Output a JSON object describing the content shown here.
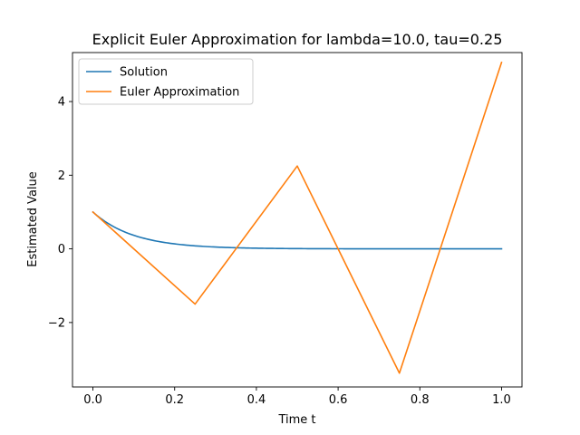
{
  "chart_data": {
    "type": "line",
    "title": "Explicit Euler Approximation for lambda=10.0, tau=0.25",
    "xlabel": "Time t",
    "ylabel": "Estimated Value",
    "xlim": [
      -0.05,
      1.05
    ],
    "ylim": [
      -3.75,
      5.33
    ],
    "xticks": [
      0.0,
      0.2,
      0.4,
      0.6,
      0.8,
      1.0
    ],
    "xtick_labels": [
      "0.0",
      "0.2",
      "0.4",
      "0.6",
      "0.8",
      "1.0"
    ],
    "yticks": [
      -2,
      0,
      2,
      4
    ],
    "ytick_labels": [
      "−2",
      "0",
      "2",
      "4"
    ],
    "grid": false,
    "legend_position": "top-left",
    "series": [
      {
        "name": "Solution",
        "color": "#1f77b4",
        "function": "exp(-10 t)",
        "x_range": [
          0.0,
          1.0
        ]
      },
      {
        "name": "Euler Approximation",
        "color": "#ff7f0e",
        "x": [
          0.0,
          0.25,
          0.5,
          0.75,
          1.0
        ],
        "y": [
          1.0,
          -1.5,
          2.25,
          -3.375,
          5.0625
        ]
      }
    ]
  }
}
